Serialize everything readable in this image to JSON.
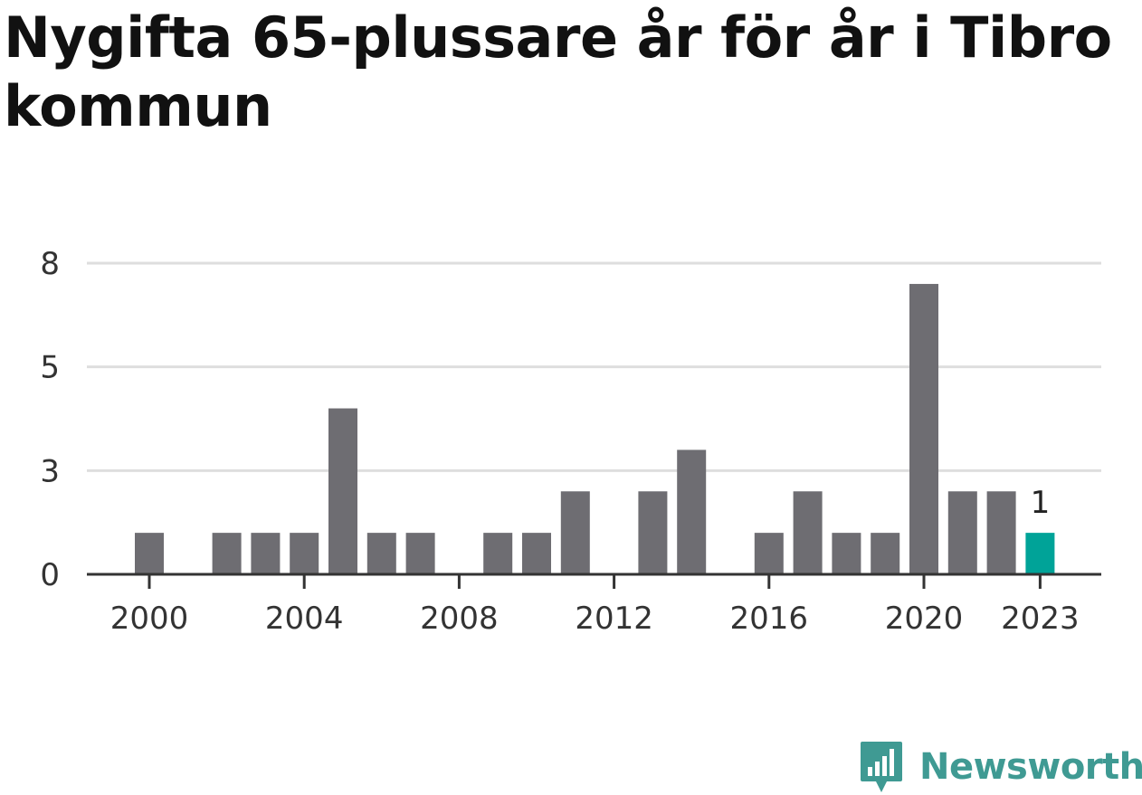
{
  "title": "Nygifta 65-plussare år för år i Tibro kommun",
  "brand": {
    "name": "Newsworthy",
    "icon": "bar-chart-speech-bubble-logo",
    "color": "#3f9a93"
  },
  "chart_data": {
    "type": "bar",
    "x": [
      2000,
      2001,
      2002,
      2003,
      2004,
      2005,
      2006,
      2007,
      2008,
      2009,
      2010,
      2011,
      2012,
      2013,
      2014,
      2015,
      2016,
      2017,
      2018,
      2019,
      2020,
      2021,
      2022,
      2023
    ],
    "values": [
      1,
      0,
      1,
      1,
      1,
      4,
      1,
      1,
      0,
      1,
      1,
      2,
      0,
      2,
      3,
      0,
      1,
      2,
      1,
      1,
      7,
      2,
      2,
      1
    ],
    "x_tick_labels": [
      "2000",
      "2004",
      "2008",
      "2012",
      "2016",
      "2020",
      "2023"
    ],
    "y_tick_labels": [
      "0",
      "3",
      "5",
      "8"
    ],
    "ylim": [
      0,
      7.5
    ],
    "grid": "horizontal",
    "bar_color": "#6e6d72",
    "highlight": {
      "x": 2023,
      "label": "1",
      "color": "#00a398"
    }
  }
}
